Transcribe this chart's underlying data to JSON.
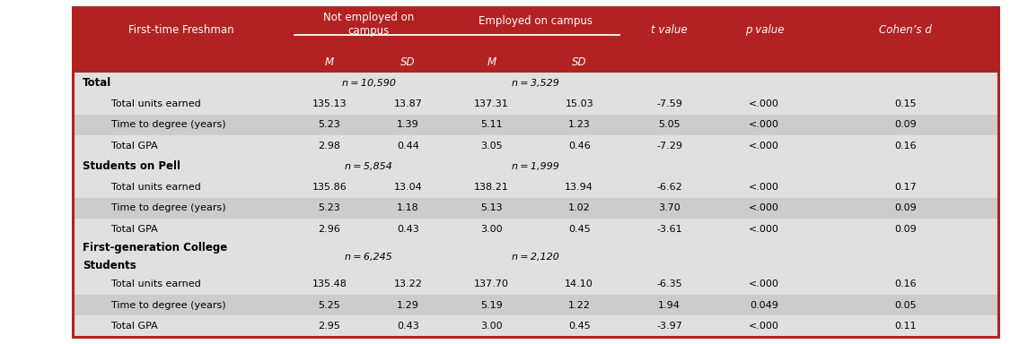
{
  "header_bg": "#b22222",
  "row_bg_light": "#e0e0e0",
  "row_bg_dark": "#cccccc",
  "border_color": "#b22222",
  "col1_label": "First-time Freshman",
  "col2_label": "Not employed on\ncampus",
  "col3_label": "Employed on campus",
  "col4_label": "t value",
  "col5_label": "p value",
  "col6_label": "Cohen’s d",
  "subheaders": [
    "M",
    "SD",
    "M",
    "SD"
  ],
  "sections": [
    {
      "label": "Total",
      "n_row": "n = 10,590",
      "n_col": "n = 3,529",
      "rows": [
        [
          "Total units earned",
          "135.13",
          "13.87",
          "137.31",
          "15.03",
          "-7.59",
          "<.000",
          "0.15"
        ],
        [
          "Time to degree (years)",
          "5.23",
          "1.39",
          "5.11",
          "1.23",
          "5.05",
          "<.000",
          "0.09"
        ],
        [
          "Total GPA",
          "2.98",
          "0.44",
          "3.05",
          "0.46",
          "-7.29",
          "<.000",
          "0.16"
        ]
      ]
    },
    {
      "label": "Students on Pell",
      "n_row": "n = 5,854",
      "n_col": "n = 1,999",
      "rows": [
        [
          "Total units earned",
          "135.86",
          "13.04",
          "138.21",
          "13.94",
          "-6.62",
          "<.000",
          "0.17"
        ],
        [
          "Time to degree (years)",
          "5.23",
          "1.18",
          "5.13",
          "1.02",
          "3.70",
          "<.000",
          "0.09"
        ],
        [
          "Total GPA",
          "2.96",
          "0.43",
          "3.00",
          "0.45",
          "-3.61",
          "<.000",
          "0.09"
        ]
      ]
    },
    {
      "label": "First-generation College\nStudents",
      "n_row": "n = 6,245",
      "n_col": "n = 2,120",
      "rows": [
        [
          "Total units earned",
          "135.48",
          "13.22",
          "137.70",
          "14.10",
          "-6.35",
          "<.000",
          "0.16"
        ],
        [
          "Time to degree (years)",
          "5.25",
          "1.29",
          "5.19",
          "1.22",
          "1.94",
          "0.049",
          "0.05"
        ],
        [
          "Total GPA",
          "2.95",
          "0.43",
          "3.00",
          "0.45",
          "-3.97",
          "<.000",
          "0.11"
        ]
      ]
    }
  ],
  "figsize": [
    11.25,
    3.84
  ],
  "dpi": 100
}
